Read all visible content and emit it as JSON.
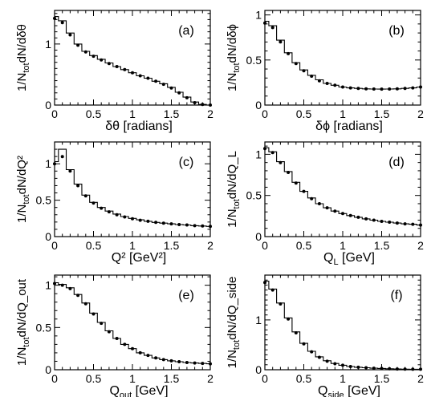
{
  "chart_data": [
    {
      "type": "line",
      "panel_label": "(a)",
      "ylabel_main": "1/N",
      "ylabel_sub": "tot",
      "ylabel_tail": "dN/dδθ",
      "xlabel_main": "δθ [radians]",
      "xlim": [
        0,
        2
      ],
      "ylim": [
        0,
        1.55
      ],
      "xticks": [
        "0",
        "0.5",
        "1",
        "1.5",
        "2"
      ],
      "yticks": [
        {
          "v": 0,
          "t": "0"
        },
        {
          "v": 1,
          "t": "1"
        }
      ],
      "x": [
        0.0,
        0.1,
        0.2,
        0.3,
        0.4,
        0.5,
        0.6,
        0.7,
        0.8,
        0.9,
        1.0,
        1.1,
        1.2,
        1.3,
        1.4,
        1.5,
        1.6,
        1.7,
        1.8,
        1.9,
        2.0
      ],
      "y_points": [
        1.42,
        1.35,
        1.15,
        0.98,
        0.87,
        0.8,
        0.74,
        0.68,
        0.63,
        0.58,
        0.53,
        0.48,
        0.44,
        0.39,
        0.34,
        0.28,
        0.2,
        0.12,
        0.04,
        0.01,
        0.0
      ],
      "y_hist": [
        1.45,
        1.38,
        1.18,
        1.0,
        0.88,
        0.81,
        0.75,
        0.69,
        0.63,
        0.58,
        0.53,
        0.48,
        0.44,
        0.39,
        0.35,
        0.29,
        0.21,
        0.13,
        0.05,
        0.01,
        0.0
      ]
    },
    {
      "type": "line",
      "panel_label": "(b)",
      "ylabel_main": "1/N",
      "ylabel_sub": "tot",
      "ylabel_tail": "dN/dδϕ",
      "xlabel_main": "δϕ [radians]",
      "xlim": [
        0,
        2
      ],
      "ylim": [
        0,
        1.05
      ],
      "xticks": [
        "0",
        "0.5",
        "1",
        "1.5",
        "2"
      ],
      "yticks": [
        {
          "v": 0,
          "t": "0"
        },
        {
          "v": 0.5,
          "t": "0.5"
        },
        {
          "v": 1,
          "t": "1"
        }
      ],
      "x": [
        0.0,
        0.1,
        0.2,
        0.3,
        0.4,
        0.5,
        0.6,
        0.7,
        0.8,
        0.9,
        1.0,
        1.1,
        1.2,
        1.3,
        1.4,
        1.5,
        1.6,
        1.7,
        1.8,
        1.9,
        2.0
      ],
      "y_points": [
        0.91,
        0.86,
        0.7,
        0.57,
        0.46,
        0.38,
        0.32,
        0.27,
        0.24,
        0.22,
        0.2,
        0.19,
        0.185,
        0.18,
        0.178,
        0.177,
        0.178,
        0.18,
        0.185,
        0.19,
        0.2
      ],
      "y_hist": [
        0.93,
        0.88,
        0.72,
        0.58,
        0.47,
        0.39,
        0.33,
        0.28,
        0.24,
        0.22,
        0.2,
        0.19,
        0.185,
        0.18,
        0.178,
        0.177,
        0.178,
        0.18,
        0.185,
        0.19,
        0.2
      ]
    },
    {
      "type": "line",
      "panel_label": "(c)",
      "ylabel_main": "1/N",
      "ylabel_sub": "tot",
      "ylabel_tail": "dN/dQ²",
      "xlabel_main": "Q² [GeV²]",
      "xlim": [
        0,
        2
      ],
      "ylim": [
        0,
        1.3
      ],
      "xticks": [
        "0",
        "0.5",
        "1",
        "1.5",
        "2"
      ],
      "yticks": [
        {
          "v": 0,
          "t": "0"
        },
        {
          "v": 0.5,
          "t": "0.5"
        },
        {
          "v": 1,
          "t": "1"
        }
      ],
      "x": [
        0.0,
        0.1,
        0.2,
        0.3,
        0.4,
        0.5,
        0.6,
        0.7,
        0.8,
        0.9,
        1.0,
        1.1,
        1.2,
        1.3,
        1.4,
        1.5,
        1.6,
        1.7,
        1.8,
        1.9,
        2.0
      ],
      "y_points": [
        1.0,
        1.1,
        0.9,
        0.7,
        0.56,
        0.46,
        0.39,
        0.34,
        0.3,
        0.27,
        0.245,
        0.225,
        0.21,
        0.195,
        0.185,
        0.175,
        0.165,
        0.16,
        0.15,
        0.145,
        0.14
      ],
      "y_hist": [
        1.03,
        1.2,
        0.92,
        0.72,
        0.57,
        0.47,
        0.4,
        0.35,
        0.31,
        0.275,
        0.25,
        0.23,
        0.21,
        0.195,
        0.185,
        0.175,
        0.165,
        0.16,
        0.15,
        0.145,
        0.14
      ]
    },
    {
      "type": "line",
      "panel_label": "(d)",
      "ylabel_main": "1/N",
      "ylabel_sub": "tot",
      "ylabel_tail": "dN/dQ_L",
      "xlabel_main": "Q",
      "xlabel_sub": "L",
      "xlabel_tail": " [GeV]",
      "xlim": [
        0,
        2
      ],
      "ylim": [
        0,
        1.15
      ],
      "xticks": [
        "0",
        "0.5",
        "1",
        "1.5",
        "2"
      ],
      "yticks": [
        {
          "v": 0,
          "t": "0"
        },
        {
          "v": 0.5,
          "t": "0.5"
        },
        {
          "v": 1,
          "t": "1"
        }
      ],
      "x": [
        0.0,
        0.1,
        0.2,
        0.3,
        0.4,
        0.5,
        0.6,
        0.7,
        0.8,
        0.9,
        1.0,
        1.1,
        1.2,
        1.3,
        1.4,
        1.5,
        1.6,
        1.7,
        1.8,
        1.9,
        2.0
      ],
      "y_points": [
        1.07,
        1.02,
        0.9,
        0.78,
        0.65,
        0.55,
        0.46,
        0.4,
        0.35,
        0.31,
        0.28,
        0.255,
        0.235,
        0.215,
        0.2,
        0.185,
        0.175,
        0.165,
        0.155,
        0.15,
        0.14
      ],
      "y_hist": [
        1.08,
        1.03,
        0.91,
        0.79,
        0.66,
        0.55,
        0.47,
        0.4,
        0.35,
        0.31,
        0.28,
        0.255,
        0.235,
        0.215,
        0.2,
        0.185,
        0.175,
        0.165,
        0.155,
        0.15,
        0.14
      ]
    },
    {
      "type": "line",
      "panel_label": "(e)",
      "ylabel_main": "1/N",
      "ylabel_sub": "tot",
      "ylabel_tail": "dN/dQ_out",
      "xlabel_main": "Q",
      "xlabel_sub": "out",
      "xlabel_tail": " [GeV]",
      "xlim": [
        0,
        2
      ],
      "ylim": [
        0,
        1.12
      ],
      "xticks": [
        "0",
        "0.5",
        "1",
        "1.5",
        "2"
      ],
      "yticks": [
        {
          "v": 0,
          "t": "0"
        },
        {
          "v": 0.5,
          "t": "0.5"
        },
        {
          "v": 1,
          "t": "1"
        }
      ],
      "x": [
        0.0,
        0.1,
        0.2,
        0.3,
        0.4,
        0.5,
        0.6,
        0.7,
        0.8,
        0.9,
        1.0,
        1.1,
        1.2,
        1.3,
        1.4,
        1.5,
        1.6,
        1.7,
        1.8,
        1.9,
        2.0
      ],
      "y_points": [
        1.02,
        1.0,
        0.96,
        0.88,
        0.78,
        0.66,
        0.55,
        0.45,
        0.37,
        0.3,
        0.25,
        0.2,
        0.17,
        0.14,
        0.12,
        0.105,
        0.095,
        0.085,
        0.08,
        0.075,
        0.07
      ],
      "y_hist": [
        1.03,
        1.01,
        0.97,
        0.89,
        0.79,
        0.67,
        0.56,
        0.46,
        0.37,
        0.3,
        0.25,
        0.2,
        0.17,
        0.14,
        0.12,
        0.105,
        0.095,
        0.085,
        0.08,
        0.075,
        0.07
      ]
    },
    {
      "type": "line",
      "panel_label": "(f)",
      "ylabel_main": "1/N",
      "ylabel_sub": "tot",
      "ylabel_tail": "dN/dQ_side",
      "xlabel_main": "Q",
      "xlabel_sub": "side",
      "xlabel_tail": " [GeV]",
      "xlim": [
        0,
        2
      ],
      "ylim": [
        0,
        1.9
      ],
      "xticks": [
        "0",
        "0.5",
        "1",
        "1.5",
        "2"
      ],
      "yticks": [
        {
          "v": 0,
          "t": "0"
        },
        {
          "v": 1,
          "t": "1"
        }
      ],
      "x": [
        0.0,
        0.1,
        0.2,
        0.3,
        0.4,
        0.5,
        0.6,
        0.7,
        0.8,
        0.9,
        1.0,
        1.1,
        1.2,
        1.3,
        1.4,
        1.5,
        1.6,
        1.7,
        1.8,
        1.9,
        2.0
      ],
      "y_points": [
        1.75,
        1.6,
        1.32,
        1.02,
        0.74,
        0.52,
        0.36,
        0.25,
        0.17,
        0.12,
        0.09,
        0.065,
        0.05,
        0.04,
        0.03,
        0.025,
        0.02,
        0.015,
        0.012,
        0.01,
        0.01
      ],
      "y_hist": [
        1.78,
        1.62,
        1.34,
        1.04,
        0.76,
        0.53,
        0.37,
        0.26,
        0.18,
        0.125,
        0.09,
        0.065,
        0.05,
        0.04,
        0.03,
        0.025,
        0.02,
        0.015,
        0.012,
        0.01,
        0.01
      ]
    }
  ]
}
